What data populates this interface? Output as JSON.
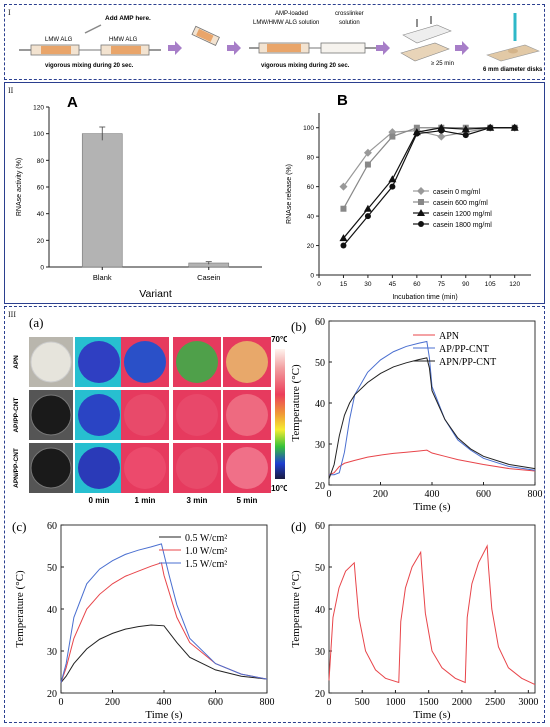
{
  "panel_labels": {
    "i": "I",
    "ii": "II",
    "iii": "III"
  },
  "schematic": {
    "add_amp": "Add AMP here.",
    "lmw_alg": "LMW ALG",
    "hmw_alg": "HMW ALG",
    "mix1": "vigorous mixing during 20 sec.",
    "amp_loaded": "AMP-loaded",
    "lmw_hmw_solution": "LMW/HMW ALG solution",
    "crosslinker": "crosslinker",
    "solution": "solution",
    "mix2": "vigorous mixing during 20 sec.",
    "time": "≥ 25 min",
    "disks": "6 mm diameter disks"
  },
  "thermal": {
    "label": "(a)",
    "rows": [
      "APN",
      "AP/PP-CNT",
      "APN/PP-CNT"
    ],
    "times": [
      "0 min",
      "1 min",
      "3 min",
      "5 min"
    ],
    "scale_max": "70°C",
    "scale_min": "10°C",
    "colors": {
      "APN": [
        "#2f3fc2",
        "#2a50c8",
        "#4fa04a",
        "#e8a86a"
      ],
      "AP/PP-CNT": [
        "#2a44c4",
        "#e84a6a",
        "#e8486a",
        "#ee6a80"
      ],
      "APN/PP-CNT": [
        "#2a3ab8",
        "#ec4a6c",
        "#e84a6a",
        "#f07088"
      ]
    }
  },
  "chart_data": [
    {
      "id": "A",
      "type": "bar",
      "panel_letter": "A",
      "categories": [
        "Blank",
        "Casein"
      ],
      "values": [
        100,
        3
      ],
      "errors": [
        5,
        1
      ],
      "xlabel": "Variant",
      "ylabel": "RNAse activity (%)",
      "ylim": [
        0,
        120
      ],
      "yticks": [
        0,
        20,
        40,
        60,
        80,
        100,
        120
      ],
      "color": "#b3b3b3"
    },
    {
      "id": "B",
      "type": "line",
      "panel_letter": "B",
      "xlabel": "Incubation time (min)",
      "ylabel": "RNAse release (%)",
      "xlim": [
        0,
        130
      ],
      "ylim": [
        0,
        110
      ],
      "xticks": [
        0,
        15,
        30,
        45,
        60,
        75,
        90,
        105,
        120
      ],
      "yticks": [
        0,
        20,
        40,
        60,
        80,
        100
      ],
      "legend_position": "bottom-right",
      "series": [
        {
          "name": "casein 0 mg/ml",
          "marker": "diamond",
          "color": "#999999",
          "x": [
            15,
            30,
            45,
            60,
            75,
            90,
            105,
            120
          ],
          "y": [
            60,
            83,
            97,
            98,
            94,
            97,
            100,
            100
          ]
        },
        {
          "name": "casein 600 mg/ml",
          "marker": "square",
          "color": "#888888",
          "x": [
            15,
            30,
            45,
            60,
            75,
            90,
            105,
            120
          ],
          "y": [
            45,
            75,
            94,
            100,
            100,
            100,
            100,
            100
          ]
        },
        {
          "name": "casein 1200 mg/ml",
          "marker": "triangle",
          "color": "#111111",
          "x": [
            15,
            30,
            45,
            60,
            75,
            90,
            105,
            120
          ],
          "y": [
            25,
            45,
            65,
            97,
            100,
            99,
            100,
            100
          ]
        },
        {
          "name": "casein 1800 mg/ml",
          "marker": "circle",
          "color": "#111111",
          "x": [
            15,
            30,
            45,
            60,
            75,
            90,
            105,
            120
          ],
          "y": [
            20,
            40,
            60,
            96,
            98,
            95,
            100,
            100
          ]
        }
      ]
    },
    {
      "id": "b",
      "type": "line",
      "panel_letter": "(b)",
      "xlabel": "Time (s)",
      "ylabel": "Temperature (°C)",
      "xlim": [
        0,
        800
      ],
      "ylim": [
        20,
        60
      ],
      "xticks": [
        0,
        200,
        400,
        600,
        800
      ],
      "yticks": [
        20,
        30,
        40,
        50,
        60
      ],
      "legend_position": "top-right",
      "series": [
        {
          "name": "APN",
          "color": "#e8454a",
          "x": [
            0,
            20,
            40,
            60,
            100,
            150,
            200,
            250,
            300,
            350,
            380,
            400,
            450,
            500,
            600,
            700,
            800
          ],
          "y": [
            22.5,
            23,
            24.5,
            25.3,
            26,
            26.8,
            27.3,
            27.7,
            28,
            28.3,
            28.5,
            27.8,
            27,
            26.2,
            25,
            24,
            23.4
          ]
        },
        {
          "name": "AP/PP-CNT",
          "color": "#4a6fd0",
          "x": [
            0,
            20,
            40,
            60,
            80,
            100,
            150,
            200,
            250,
            300,
            350,
            380,
            390,
            400,
            450,
            500,
            550,
            600,
            700,
            800
          ],
          "y": [
            22.5,
            22.5,
            23,
            28,
            36,
            42,
            47.5,
            50.5,
            52.5,
            53.8,
            54.6,
            55,
            51,
            44,
            36,
            31,
            28.5,
            26.5,
            24.5,
            23.6
          ]
        },
        {
          "name": "APN/PP-CNT",
          "color": "#222222",
          "x": [
            0,
            20,
            40,
            60,
            80,
            100,
            150,
            200,
            250,
            300,
            350,
            380,
            390,
            400,
            450,
            500,
            550,
            600,
            700,
            800
          ],
          "y": [
            21.5,
            25,
            32,
            37,
            40,
            42,
            45,
            47.2,
            48.8,
            49.8,
            50.6,
            51,
            48.5,
            43,
            36,
            31.5,
            28.8,
            27,
            25,
            24
          ]
        }
      ]
    },
    {
      "id": "c",
      "type": "line",
      "panel_letter": "(c)",
      "xlabel": "Time (s)",
      "ylabel": "Temperature (°C)",
      "xlim": [
        0,
        800
      ],
      "ylim": [
        20,
        60
      ],
      "xticks": [
        0,
        200,
        400,
        600,
        800
      ],
      "yticks": [
        20,
        30,
        40,
        50,
        60
      ],
      "legend_position": "top-right",
      "series": [
        {
          "name": "0.5 W/cm²",
          "color": "#222222",
          "x": [
            0,
            20,
            50,
            100,
            150,
            200,
            250,
            300,
            350,
            400,
            450,
            500,
            600,
            700,
            800
          ],
          "y": [
            22.5,
            24,
            27,
            30.5,
            32.8,
            34.2,
            35.2,
            35.8,
            36.2,
            36,
            32,
            28.5,
            25.5,
            24,
            23.3
          ]
        },
        {
          "name": "1.0 W/cm²",
          "color": "#e8454a",
          "x": [
            0,
            20,
            50,
            100,
            150,
            200,
            250,
            300,
            350,
            390,
            400,
            450,
            500,
            600,
            700,
            800
          ],
          "y": [
            22.5,
            26,
            33,
            40,
            43.5,
            46,
            47.8,
            49,
            50.2,
            51,
            48,
            38,
            32,
            27,
            24.5,
            23.3
          ]
        },
        {
          "name": "1.5 W/cm²",
          "color": "#4a6fd0",
          "x": [
            0,
            20,
            50,
            100,
            150,
            200,
            250,
            300,
            350,
            390,
            400,
            420,
            450,
            500,
            600,
            700,
            800
          ],
          "y": [
            22.5,
            27,
            38,
            46,
            49.5,
            51.5,
            53,
            54,
            54.8,
            55.5,
            53,
            48,
            41,
            33,
            27,
            24.5,
            23.3
          ]
        }
      ]
    },
    {
      "id": "d",
      "type": "line",
      "panel_letter": "(d)",
      "xlabel": "Time (s)",
      "ylabel": "Temperature (°C)",
      "xlim": [
        0,
        3100
      ],
      "ylim": [
        20,
        60
      ],
      "xticks": [
        0,
        500,
        1000,
        1500,
        2000,
        2500,
        3000
      ],
      "yticks": [
        20,
        30,
        40,
        50,
        60
      ],
      "series": [
        {
          "name": "",
          "color": "#e8454a",
          "x": [
            0,
            60,
            150,
            250,
            380,
            400,
            450,
            550,
            700,
            850,
            1050,
            1080,
            1150,
            1250,
            1380,
            1400,
            1450,
            1550,
            1700,
            1900,
            2050,
            2080,
            2150,
            2250,
            2380,
            2400,
            2450,
            2550,
            2700,
            2900,
            3100
          ],
          "y": [
            23,
            38,
            45,
            49,
            51,
            47,
            38,
            30,
            25.5,
            23.5,
            22.5,
            37,
            45,
            50,
            53.5,
            49,
            39,
            30,
            26,
            23.5,
            22.5,
            38,
            46,
            51,
            55,
            50,
            40,
            31,
            26,
            23.5,
            22
          ]
        }
      ]
    }
  ]
}
